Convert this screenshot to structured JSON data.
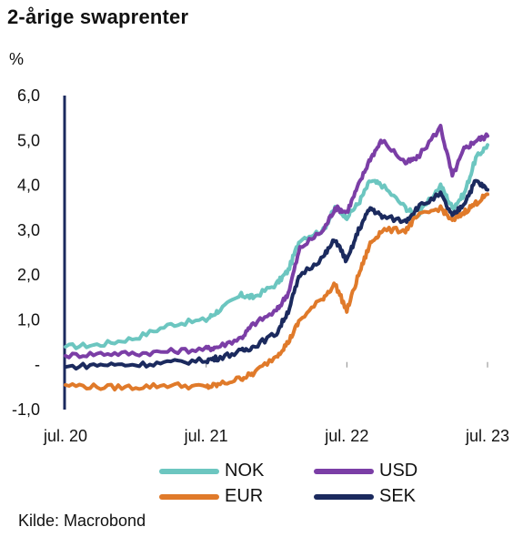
{
  "chart_data": {
    "type": "line",
    "title": "2-årige swaprenter",
    "unit_label": "%",
    "source": "Kilde: Macrobond",
    "ylim": [
      -1.0,
      6.0
    ],
    "yticks": [
      {
        "value": 6.0,
        "label": "6,0"
      },
      {
        "value": 5.0,
        "label": "5,0"
      },
      {
        "value": 4.0,
        "label": "4,0"
      },
      {
        "value": 3.0,
        "label": "3,0"
      },
      {
        "value": 2.0,
        "label": "2,0"
      },
      {
        "value": 1.0,
        "label": "1,0"
      },
      {
        "value": 0.0,
        "label": "-"
      },
      {
        "value": -1.0,
        "label": "-1,0"
      }
    ],
    "xticks": [
      {
        "value": "2020-07",
        "label": "jul. 20"
      },
      {
        "value": "2021-07",
        "label": "jul. 21"
      },
      {
        "value": "2022-07",
        "label": "jul. 22"
      },
      {
        "value": "2023-07",
        "label": "jul. 23"
      }
    ],
    "x": [
      "2020-07",
      "2020-10",
      "2021-01",
      "2021-04",
      "2021-07",
      "2021-08",
      "2021-10",
      "2021-11",
      "2022-01",
      "2022-02",
      "2022-03",
      "2022-05",
      "2022-06",
      "2022-07",
      "2022-08",
      "2022-09",
      "2022-10",
      "2022-12",
      "2023-01",
      "2023-03",
      "2023-04",
      "2023-05",
      "2023-06",
      "2023-07"
    ],
    "series": [
      {
        "name": "NOK",
        "color": "#6cc6c0",
        "values": [
          0.4,
          0.45,
          0.6,
          0.9,
          1.0,
          1.2,
          1.55,
          1.5,
          1.8,
          2.1,
          2.8,
          3.0,
          3.5,
          3.3,
          3.6,
          4.1,
          4.0,
          3.5,
          3.3,
          4.0,
          3.5,
          3.8,
          4.6,
          4.9
        ]
      },
      {
        "name": "USD",
        "color": "#7b3ea6",
        "values": [
          0.2,
          0.25,
          0.25,
          0.3,
          0.35,
          0.4,
          0.6,
          0.9,
          1.2,
          1.6,
          2.6,
          3.0,
          3.5,
          3.4,
          4.0,
          4.6,
          5.0,
          4.5,
          4.6,
          5.3,
          4.2,
          4.8,
          5.0,
          5.1
        ]
      },
      {
        "name": "EUR",
        "color": "#e07a2a",
        "values": [
          -0.45,
          -0.5,
          -0.5,
          -0.45,
          -0.5,
          -0.45,
          -0.3,
          -0.2,
          0.2,
          0.5,
          1.0,
          1.5,
          1.8,
          1.2,
          2.0,
          2.7,
          3.0,
          3.0,
          3.3,
          3.5,
          3.2,
          3.4,
          3.6,
          3.8
        ]
      },
      {
        "name": "SEK",
        "color": "#1b2a5e",
        "values": [
          -0.05,
          0.0,
          0.0,
          0.05,
          0.1,
          0.15,
          0.3,
          0.4,
          0.7,
          1.2,
          2.0,
          2.4,
          2.8,
          2.3,
          3.0,
          3.5,
          3.3,
          3.2,
          3.5,
          3.8,
          3.3,
          3.6,
          4.1,
          3.9
        ]
      }
    ],
    "legend_placement": "bottom",
    "grid": false
  }
}
